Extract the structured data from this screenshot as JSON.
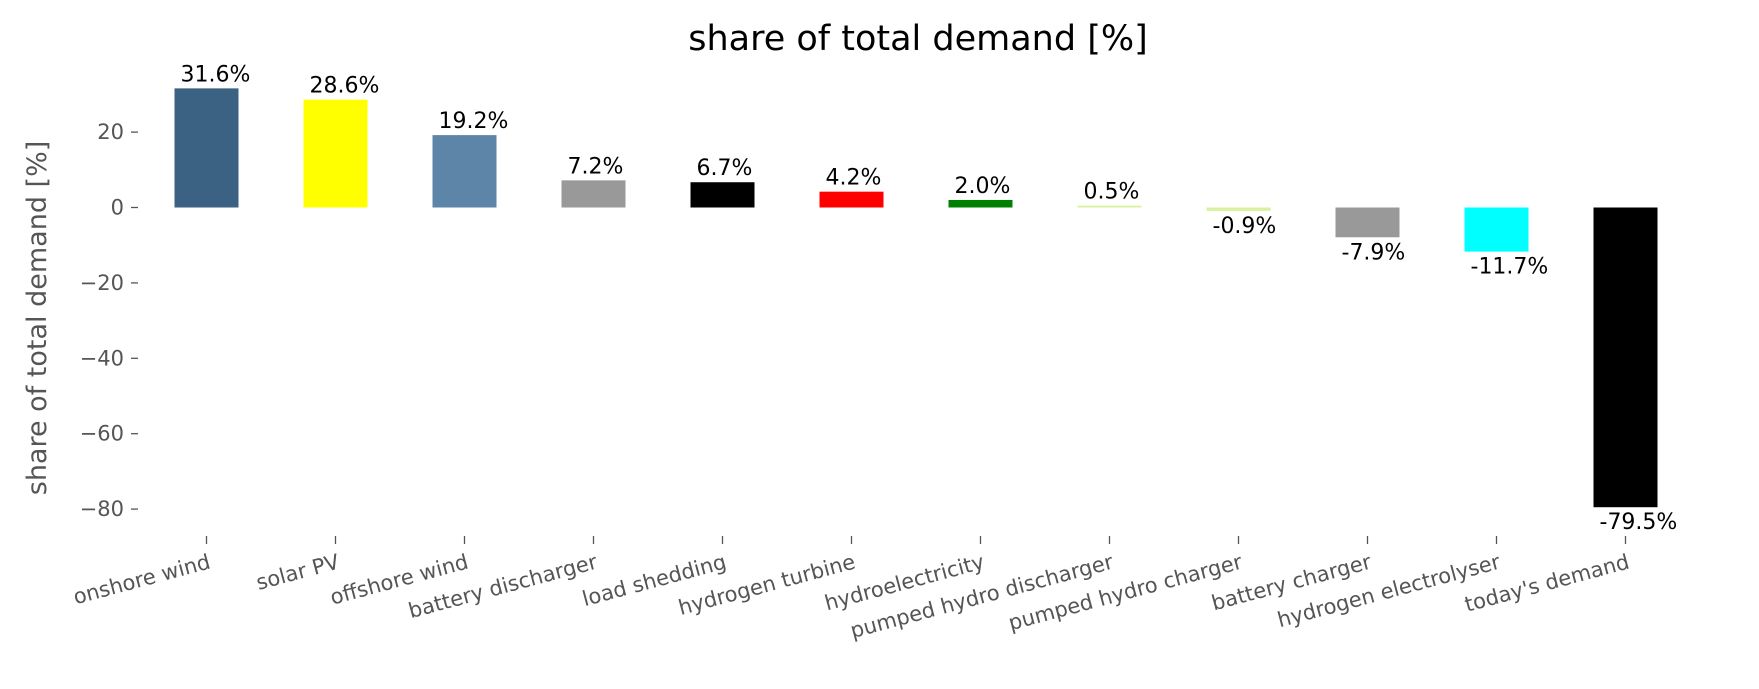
{
  "chart_data": {
    "type": "bar",
    "title": "share of total demand [%]",
    "xlabel": "",
    "ylabel": "share of total demand [%]",
    "ylim": [
      -87,
      36
    ],
    "yticks": [
      20,
      0,
      -20,
      -40,
      -60,
      -80
    ],
    "grid": false,
    "categories": [
      "onshore wind",
      "solar PV",
      "offshore wind",
      "battery discharger",
      "load shedding",
      "hydrogen turbine",
      "hydroelectricity",
      "pumped hydro discharger",
      "pumped hydro charger",
      "battery charger",
      "hydrogen electrolyser",
      "today's demand"
    ],
    "values": [
      31.6,
      28.6,
      19.2,
      7.2,
      6.7,
      4.2,
      2.0,
      0.5,
      -0.9,
      -7.9,
      -11.7,
      -79.5
    ],
    "data_labels": [
      "31.6%",
      "28.6%",
      "19.2%",
      "7.2%",
      "6.7%",
      "4.2%",
      "2.0%",
      "0.5%",
      "-0.9%",
      "-7.9%",
      "-11.7%",
      "-79.5%"
    ],
    "colors": [
      "#3b6183",
      "#ffff00",
      "#5c85a8",
      "#999999",
      "#000000",
      "#ff0000",
      "#008000",
      "#d9f2a0",
      "#d9f2a0",
      "#999999",
      "#00ffff",
      "#000000"
    ]
  }
}
